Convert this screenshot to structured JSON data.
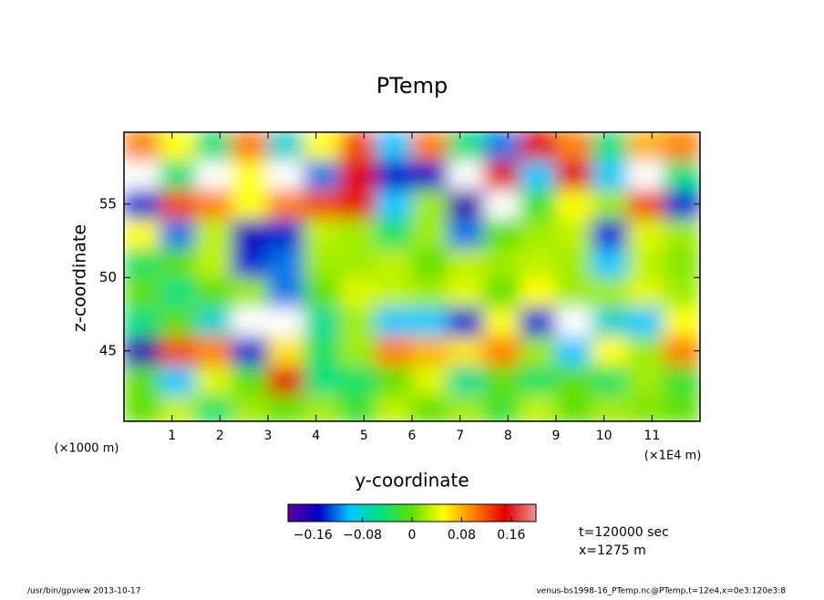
{
  "chart_data": {
    "type": "heatmap",
    "title": "PTemp",
    "xlabel": "y-coordinate",
    "ylabel": "z-coordinate",
    "xunit": "(×1E4 m)",
    "yunit": "(×1000 m)",
    "annotations": [
      "t=120000 sec",
      "x=1275 m"
    ],
    "footer_left": "/usr/bin/gpview  2013-10-17",
    "footer_right": "venus-bs1998-16_PTemp.nc@PTemp,t=12e4,x=0e3:120e3:8",
    "xlim": [
      0,
      12
    ],
    "ylim": [
      40.2,
      59.9
    ],
    "xticks": [
      1,
      2,
      3,
      4,
      5,
      6,
      7,
      8,
      9,
      10,
      11
    ],
    "yticks": [
      45,
      50,
      55
    ],
    "x": [
      0.375,
      1.125,
      1.875,
      2.625,
      3.375,
      4.125,
      4.875,
      5.625,
      6.375,
      7.125,
      7.875,
      8.625,
      9.375,
      10.125,
      10.875,
      11.625
    ],
    "y": [
      41,
      43,
      45,
      47,
      49,
      51,
      53,
      55,
      57,
      59
    ],
    "z": [
      [
        0.0,
        0.03,
        -0.04,
        0.02,
        0.0,
        0.02,
        -0.02,
        0.03,
        0.0,
        0.02,
        -0.02,
        0.03,
        0.0,
        0.02,
        0.01,
        0.0
      ],
      [
        0.0,
        -0.1,
        0.04,
        0.0,
        0.15,
        -0.05,
        -0.04,
        0.0,
        0.04,
        -0.06,
        0.0,
        -0.04,
        0.0,
        -0.04,
        0.02,
        -0.02
      ],
      [
        -0.18,
        0.12,
        0.1,
        -0.14,
        0.06,
        -0.04,
        0.02,
        0.1,
        0.08,
        0.06,
        0.1,
        0.02,
        -0.1,
        0.05,
        0.02,
        0.1
      ],
      [
        -0.05,
        0.0,
        -0.08,
        0.22,
        0.22,
        -0.06,
        0.02,
        -0.1,
        -0.1,
        -0.14,
        0.05,
        -0.14,
        0.22,
        -0.08,
        -0.1,
        0.05
      ],
      [
        0.0,
        -0.05,
        0.0,
        0.02,
        -0.12,
        0.0,
        0.04,
        0.03,
        0.02,
        0.04,
        0.0,
        0.05,
        0.02,
        0.02,
        0.04,
        0.02
      ],
      [
        -0.04,
        0.0,
        0.03,
        -0.14,
        -0.12,
        0.02,
        0.02,
        0.03,
        0.0,
        0.03,
        0.02,
        0.03,
        0.02,
        -0.1,
        0.03,
        0.01
      ],
      [
        0.05,
        -0.12,
        0.03,
        -0.16,
        -0.14,
        0.03,
        0.02,
        -0.04,
        0.02,
        -0.12,
        0.0,
        0.02,
        0.03,
        -0.14,
        0.04,
        0.02
      ],
      [
        -0.14,
        0.12,
        0.1,
        0.05,
        0.1,
        0.12,
        0.14,
        -0.1,
        0.02,
        -0.18,
        0.22,
        -0.02,
        0.05,
        0.02,
        0.12,
        -0.14
      ],
      [
        0.22,
        -0.05,
        0.22,
        0.05,
        0.22,
        -0.12,
        0.15,
        -0.15,
        -0.15,
        0.22,
        0.15,
        -0.1,
        0.15,
        -0.1,
        0.22,
        -0.05
      ],
      [
        0.1,
        0.05,
        -0.05,
        0.1,
        -0.08,
        0.05,
        0.12,
        -0.1,
        0.1,
        -0.05,
        -0.12,
        0.15,
        0.1,
        -0.05,
        0.08,
        0.1
      ]
    ],
    "clim": [
      -0.2,
      0.2
    ],
    "colormap": [
      "#5a009a",
      "#0000c8",
      "#00c8ff",
      "#00e080",
      "#60e000",
      "#ffff00",
      "#ff8000",
      "#e00000",
      "#f09090"
    ],
    "out_of_range_color": "#ffffff",
    "cticks": [
      {
        "value": -0.16,
        "label": "−0.16"
      },
      {
        "value": -0.08,
        "label": "−0.08"
      },
      0,
      0.08,
      0.16
    ]
  }
}
